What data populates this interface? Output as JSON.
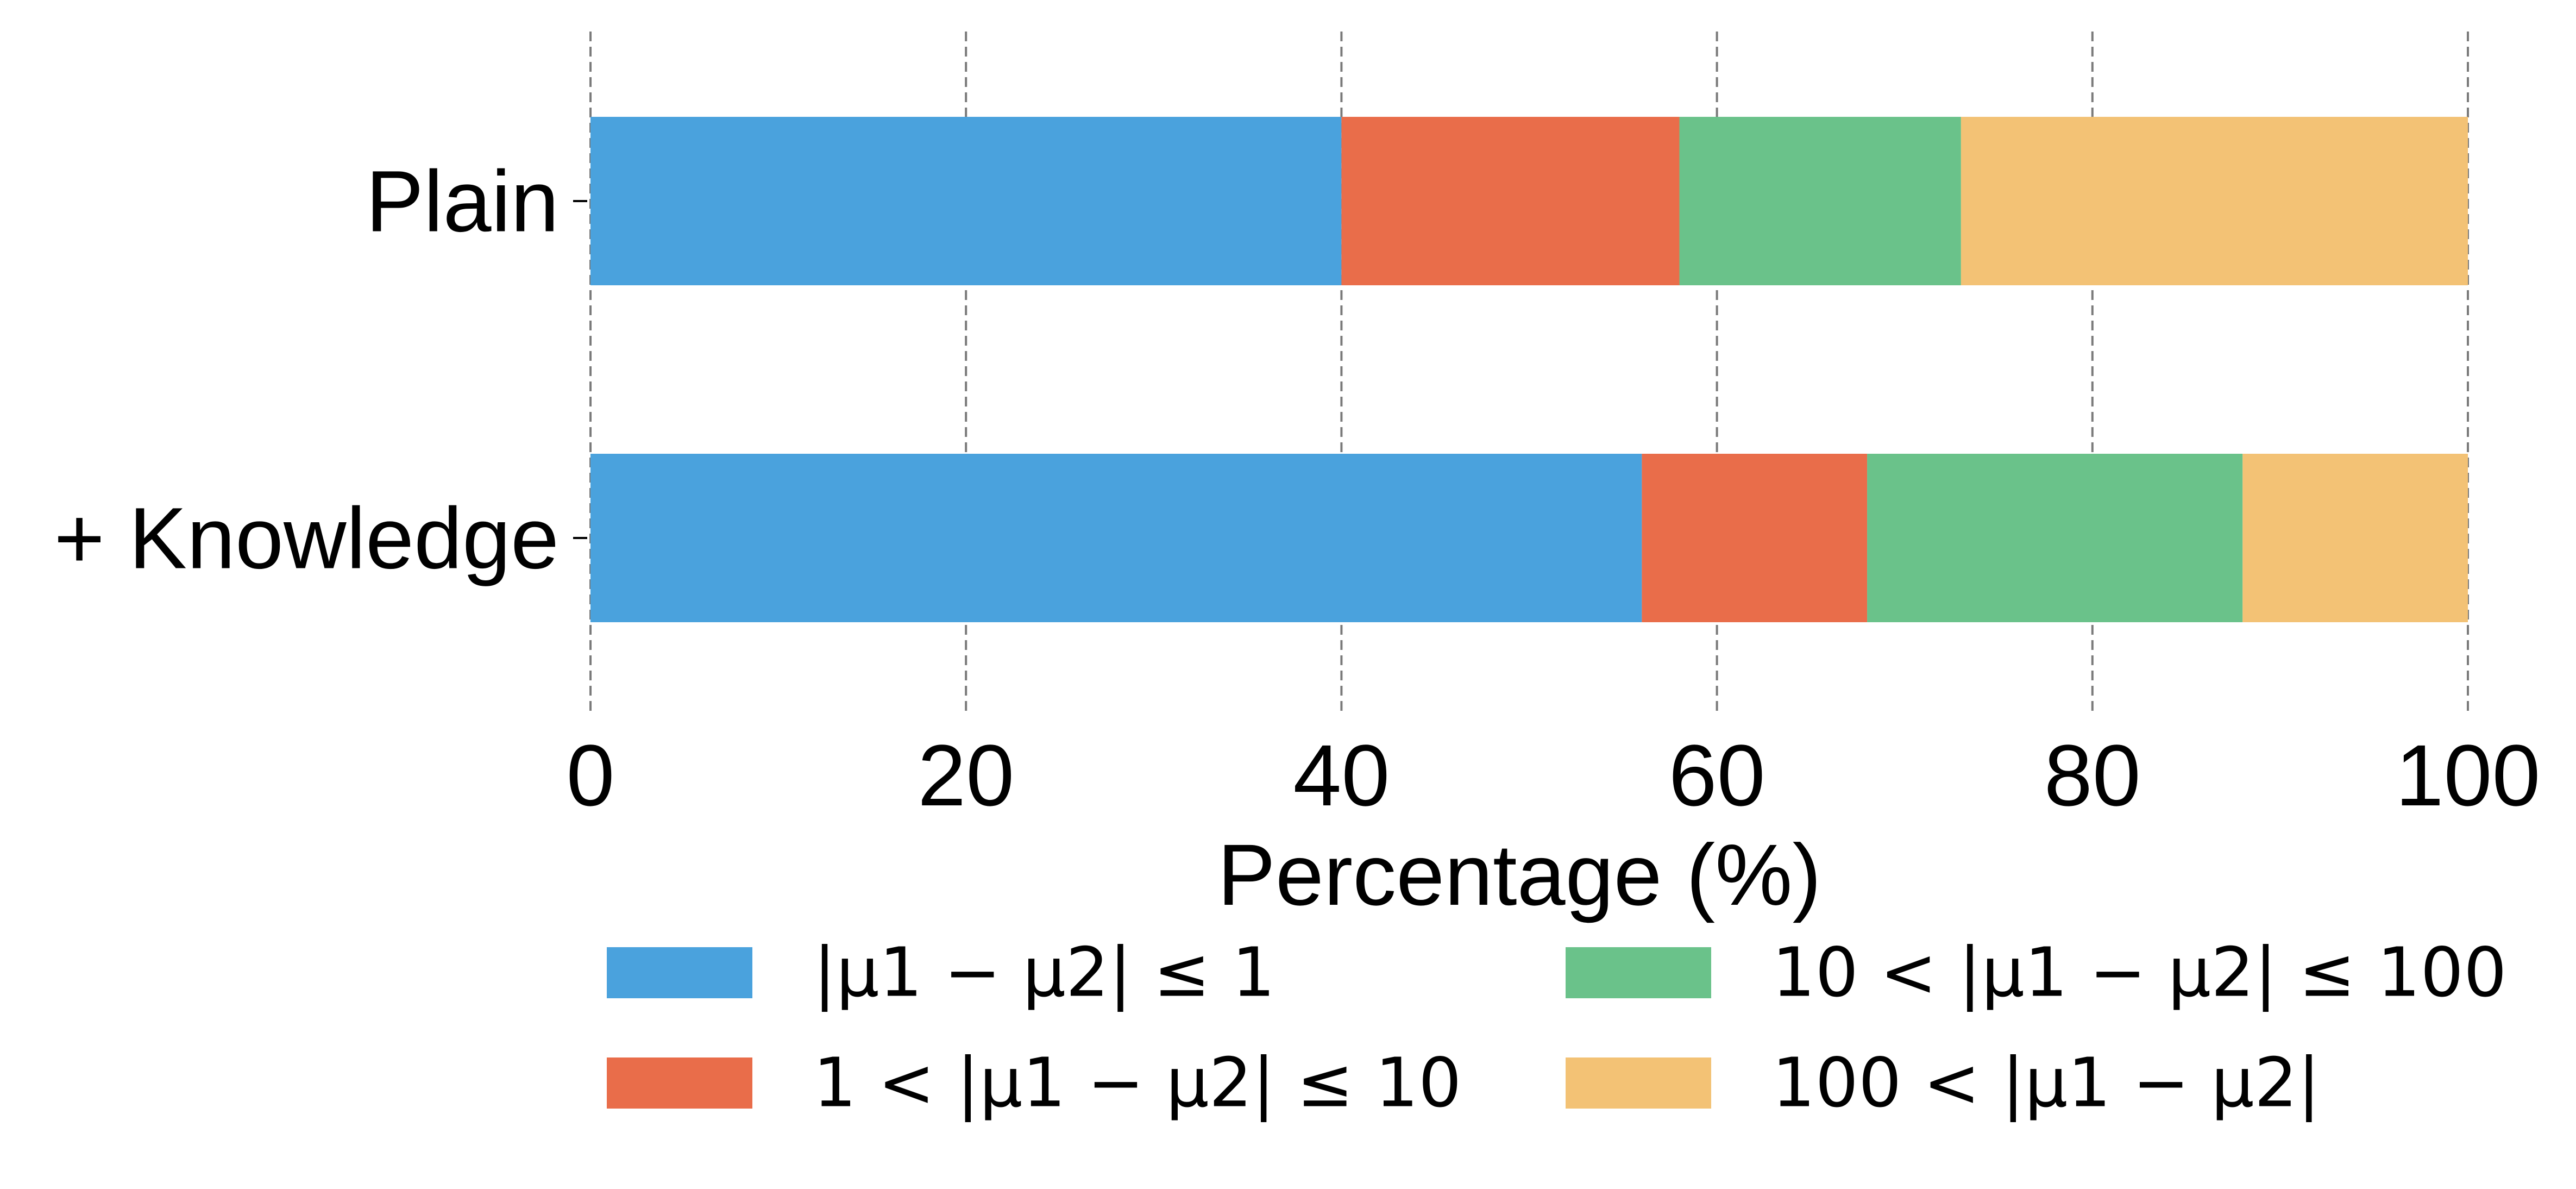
{
  "chart_data": {
    "type": "bar",
    "orientation": "horizontal",
    "stacked": true,
    "categories": [
      "Plain",
      "+ Knowledge"
    ],
    "series": [
      {
        "name": "|μ1 − μ2| ≤ 1",
        "color": "#4AA2DD",
        "values": [
          40,
          56
        ]
      },
      {
        "name": "1 < |μ1 − μ2| ≤ 10",
        "color": "#E96D4A",
        "values": [
          18,
          12
        ]
      },
      {
        "name": "10 < |μ1 − μ2| ≤ 100",
        "color": "#6AC28A",
        "values": [
          15,
          20
        ]
      },
      {
        "name": "100 < |μ1 − μ2|",
        "color": "#F3C275",
        "values": [
          27,
          12
        ]
      }
    ],
    "xlabel": "Percentage (%)",
    "ylabel": "",
    "xlim": [
      0,
      100
    ],
    "xticks": [
      0,
      20,
      40,
      60,
      80,
      100
    ],
    "grid": "vertical dashed",
    "legend": "bottom, two columns"
  }
}
